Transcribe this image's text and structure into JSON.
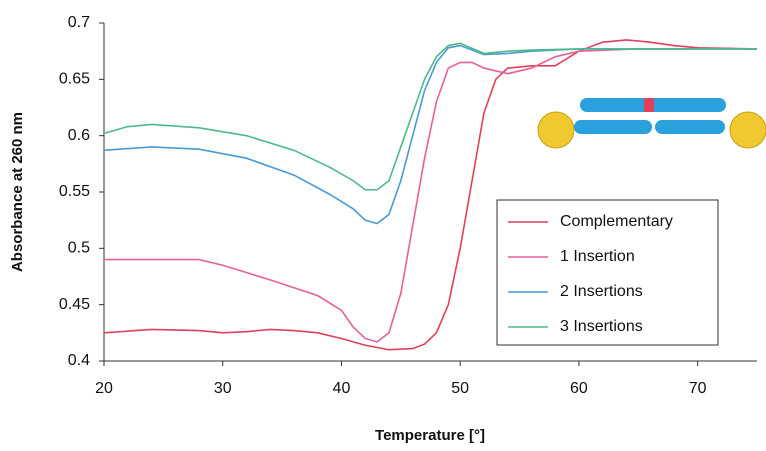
{
  "chart_data": {
    "type": "line",
    "xlabel": "Temperature [°]",
    "ylabel": "Absorbance at 260 nm",
    "xlim": [
      20,
      75
    ],
    "ylim": [
      0.4,
      0.7
    ],
    "xticks": [
      20,
      30,
      40,
      50,
      60,
      70
    ],
    "yticks": [
      0.4,
      0.45,
      0.5,
      0.55,
      0.6,
      0.65,
      0.7
    ],
    "series": [
      {
        "name": "Complementary",
        "color": "#e0405a",
        "x": [
          20,
          24,
          28,
          30,
          32,
          34,
          36,
          38,
          40,
          42,
          44,
          46,
          47,
          48,
          49,
          50,
          51,
          52,
          53,
          54,
          56,
          58,
          60,
          62,
          64,
          66,
          68,
          70,
          75
        ],
        "values": [
          0.425,
          0.428,
          0.427,
          0.425,
          0.426,
          0.428,
          0.427,
          0.425,
          0.42,
          0.414,
          0.41,
          0.411,
          0.415,
          0.425,
          0.45,
          0.5,
          0.56,
          0.62,
          0.65,
          0.66,
          0.662,
          0.662,
          0.675,
          0.683,
          0.685,
          0.683,
          0.68,
          0.678,
          0.677
        ]
      },
      {
        "name": "1 Insertion",
        "color": "#e8609a",
        "x": [
          20,
          28,
          30,
          34,
          38,
          40,
          41,
          42,
          43,
          44,
          45,
          46,
          47,
          48,
          49,
          50,
          51,
          52,
          54,
          56,
          58,
          60,
          65,
          70,
          75
        ],
        "values": [
          0.49,
          0.49,
          0.485,
          0.472,
          0.458,
          0.445,
          0.43,
          0.42,
          0.417,
          0.425,
          0.46,
          0.52,
          0.58,
          0.63,
          0.66,
          0.665,
          0.665,
          0.66,
          0.655,
          0.66,
          0.67,
          0.675,
          0.677,
          0.677,
          0.677
        ]
      },
      {
        "name": "2 Insertions",
        "color": "#4a9ad6",
        "x": [
          20,
          24,
          28,
          32,
          36,
          39,
          41,
          42,
          43,
          44,
          45,
          46,
          47,
          48,
          49,
          50,
          52,
          54,
          56,
          60,
          70,
          75
        ],
        "values": [
          0.587,
          0.59,
          0.588,
          0.58,
          0.565,
          0.548,
          0.535,
          0.525,
          0.522,
          0.53,
          0.56,
          0.6,
          0.64,
          0.665,
          0.678,
          0.68,
          0.672,
          0.673,
          0.675,
          0.677,
          0.677,
          0.677
        ]
      },
      {
        "name": "3 Insertions",
        "color": "#4cba8a",
        "x": [
          20,
          22,
          24,
          28,
          32,
          36,
          39,
          41,
          42,
          43,
          44,
          45,
          46,
          47,
          48,
          49,
          50,
          52,
          54,
          56,
          60,
          70,
          75
        ],
        "values": [
          0.602,
          0.608,
          0.61,
          0.607,
          0.6,
          0.587,
          0.572,
          0.56,
          0.552,
          0.552,
          0.56,
          0.59,
          0.62,
          0.65,
          0.67,
          0.68,
          0.682,
          0.673,
          0.675,
          0.676,
          0.677,
          0.677,
          0.677
        ]
      }
    ]
  }
}
